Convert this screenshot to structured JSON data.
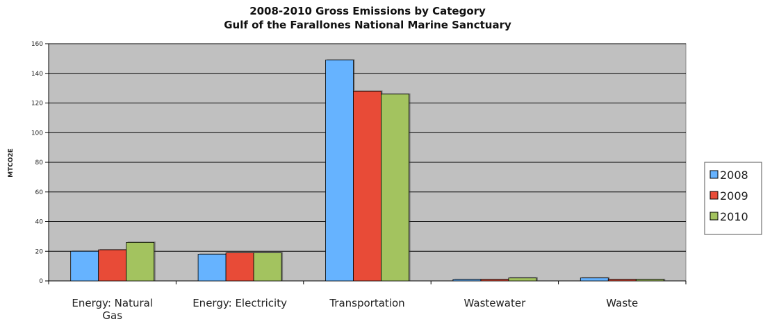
{
  "chart_data": {
    "type": "bar",
    "title": "2008-2010 Gross Emissions by Category",
    "subtitle": "Gulf of the Farallones National Marine Sanctuary",
    "xlabel": "",
    "ylabel": "MTCO2E",
    "ylim": [
      0,
      160
    ],
    "yticks": [
      0,
      20,
      40,
      60,
      80,
      100,
      120,
      140,
      160
    ],
    "grid": true,
    "legend_position": "right",
    "categories": [
      [
        "Energy: Natural",
        "Gas"
      ],
      [
        "Energy: Electricity"
      ],
      [
        "Transportation"
      ],
      [
        "Wastewater"
      ],
      [
        "Waste"
      ]
    ],
    "series": [
      {
        "name": "2008",
        "color": "#66B3FF",
        "values": [
          20,
          18,
          149,
          1,
          2
        ]
      },
      {
        "name": "2009",
        "color": "#E84B37",
        "values": [
          21,
          19,
          128,
          1,
          1
        ]
      },
      {
        "name": "2010",
        "color": "#A3C35F",
        "values": [
          26,
          19,
          126,
          2,
          1
        ]
      }
    ],
    "plot_background": "#C0C0C0"
  }
}
